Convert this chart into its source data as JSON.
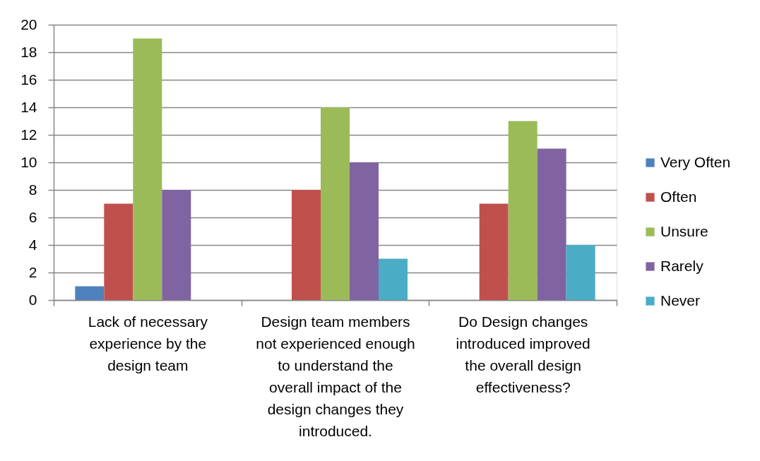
{
  "chart_data": {
    "type": "bar",
    "categories": [
      "Lack of necessary experience by the design team",
      "Design team members not experienced enough to understand the overall impact of the design changes they introduced.",
      "Do Design changes introduced improved the overall design effectiveness?"
    ],
    "series": [
      {
        "name": "Very Often",
        "color": "#4f81bd",
        "values": [
          1,
          null,
          null
        ]
      },
      {
        "name": "Often",
        "color": "#c0504d",
        "values": [
          7,
          8,
          7
        ]
      },
      {
        "name": "Unsure",
        "color": "#9bbb59",
        "values": [
          19,
          14,
          13
        ]
      },
      {
        "name": "Rarely",
        "color": "#8064a2",
        "values": [
          8,
          10,
          11
        ]
      },
      {
        "name": "Never",
        "color": "#4bacc6",
        "values": [
          null,
          3,
          4
        ]
      }
    ],
    "ylim": [
      0,
      20
    ],
    "yticks": [
      0,
      2,
      4,
      6,
      8,
      10,
      12,
      14,
      16,
      18,
      20
    ],
    "grid": "y",
    "legend": "right"
  }
}
